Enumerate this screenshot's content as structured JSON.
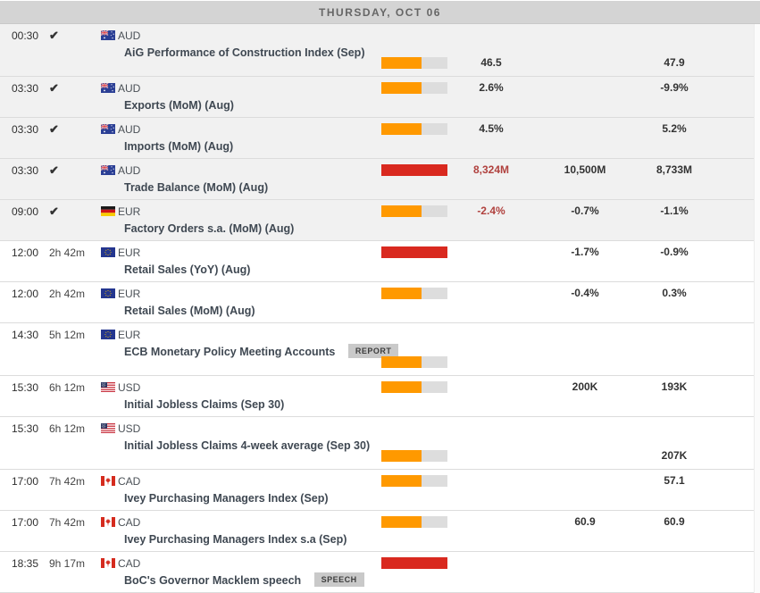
{
  "header": {
    "title": "THURSDAY, OCT 06"
  },
  "colors": {
    "header_bg": "#d4d4d4",
    "completed_row_bg": "#f1f1f1",
    "impact_medium": "#ff9900",
    "impact_high": "#d9291f",
    "bar_track": "#dddddd",
    "actual_negative_text": "#b0413e"
  },
  "events": [
    {
      "time": "00:30",
      "status": "completed",
      "countdown": "",
      "check_icon": "check-icon",
      "flag": "flag-australia",
      "currency": "AUD",
      "name": "AiG Performance of Construction Index (Sep)",
      "badge": "",
      "impact": "medium",
      "actual": "46.5",
      "actual_negative": false,
      "consensus": "",
      "previous": "47.9",
      "layout": "stacked"
    },
    {
      "time": "03:30",
      "status": "completed",
      "countdown": "",
      "check_icon": "check-icon",
      "flag": "flag-australia",
      "currency": "AUD",
      "name": "Exports (MoM) (Aug)",
      "badge": "",
      "impact": "medium",
      "actual": "2.6%",
      "actual_negative": false,
      "consensus": "",
      "previous": "-9.9%",
      "layout": "inline"
    },
    {
      "time": "03:30",
      "status": "completed",
      "countdown": "",
      "check_icon": "check-icon",
      "flag": "flag-australia",
      "currency": "AUD",
      "name": "Imports (MoM) (Aug)",
      "badge": "",
      "impact": "medium",
      "actual": "4.5%",
      "actual_negative": false,
      "consensus": "",
      "previous": "5.2%",
      "layout": "inline"
    },
    {
      "time": "03:30",
      "status": "completed",
      "countdown": "",
      "check_icon": "check-icon",
      "flag": "flag-australia",
      "currency": "AUD",
      "name": "Trade Balance (MoM) (Aug)",
      "badge": "",
      "impact": "high",
      "actual": "8,324M",
      "actual_negative": true,
      "consensus": "10,500M",
      "previous": "8,733M",
      "layout": "inline"
    },
    {
      "time": "09:00",
      "status": "completed",
      "countdown": "",
      "check_icon": "check-icon",
      "flag": "flag-germany",
      "currency": "EUR",
      "name": "Factory Orders s.a. (MoM) (Aug)",
      "badge": "",
      "impact": "medium",
      "actual": "-2.4%",
      "actual_negative": true,
      "consensus": "-0.7%",
      "previous": "-1.1%",
      "layout": "inline"
    },
    {
      "time": "12:00",
      "status": "upcoming",
      "countdown": "2h 42m",
      "check_icon": "",
      "flag": "flag-european-union",
      "currency": "EUR",
      "name": "Retail Sales (YoY) (Aug)",
      "badge": "",
      "impact": "high",
      "actual": "",
      "actual_negative": false,
      "consensus": "-1.7%",
      "previous": "-0.9%",
      "layout": "inline"
    },
    {
      "time": "12:00",
      "status": "upcoming",
      "countdown": "2h 42m",
      "check_icon": "",
      "flag": "flag-european-union",
      "currency": "EUR",
      "name": "Retail Sales (MoM) (Aug)",
      "badge": "",
      "impact": "medium",
      "actual": "",
      "actual_negative": false,
      "consensus": "-0.4%",
      "previous": "0.3%",
      "layout": "inline"
    },
    {
      "time": "14:30",
      "status": "upcoming",
      "countdown": "5h 12m",
      "check_icon": "",
      "flag": "flag-european-union",
      "currency": "EUR",
      "name": "ECB Monetary Policy Meeting Accounts",
      "badge": "REPORT",
      "impact": "medium",
      "actual": "",
      "actual_negative": false,
      "consensus": "",
      "previous": "",
      "layout": "stacked"
    },
    {
      "time": "15:30",
      "status": "upcoming",
      "countdown": "6h 12m",
      "check_icon": "",
      "flag": "flag-united-states",
      "currency": "USD",
      "name": "Initial Jobless Claims (Sep 30)",
      "badge": "",
      "impact": "medium",
      "actual": "",
      "actual_negative": false,
      "consensus": "200K",
      "previous": "193K",
      "layout": "inline"
    },
    {
      "time": "15:30",
      "status": "upcoming",
      "countdown": "6h 12m",
      "check_icon": "",
      "flag": "flag-united-states",
      "currency": "USD",
      "name": "Initial Jobless Claims 4-week average (Sep 30)",
      "badge": "",
      "impact": "medium",
      "actual": "",
      "actual_negative": false,
      "consensus": "",
      "previous": "207K",
      "layout": "stacked"
    },
    {
      "time": "17:00",
      "status": "upcoming",
      "countdown": "7h 42m",
      "check_icon": "",
      "flag": "flag-canada",
      "currency": "CAD",
      "name": "Ivey Purchasing Managers Index (Sep)",
      "badge": "",
      "impact": "medium",
      "actual": "",
      "actual_negative": false,
      "consensus": "",
      "previous": "57.1",
      "layout": "inline"
    },
    {
      "time": "17:00",
      "status": "upcoming",
      "countdown": "7h 42m",
      "check_icon": "",
      "flag": "flag-canada",
      "currency": "CAD",
      "name": "Ivey Purchasing Managers Index s.a (Sep)",
      "badge": "",
      "impact": "medium",
      "actual": "",
      "actual_negative": false,
      "consensus": "60.9",
      "previous": "60.9",
      "layout": "inline"
    },
    {
      "time": "18:35",
      "status": "upcoming",
      "countdown": "9h 17m",
      "check_icon": "",
      "flag": "flag-canada",
      "currency": "CAD",
      "name": "BoC's Governor Macklem speech",
      "badge": "SPEECH",
      "impact": "high",
      "actual": "",
      "actual_negative": false,
      "consensus": "",
      "previous": "",
      "layout": "inline"
    }
  ]
}
